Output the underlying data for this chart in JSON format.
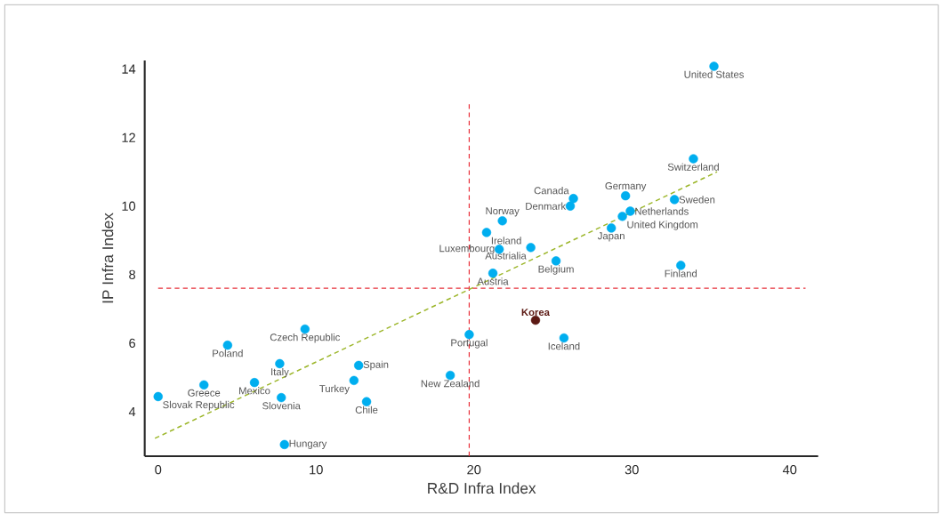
{
  "chart_data": {
    "type": "scatter",
    "xlabel": "R&D Infra Index",
    "ylabel": "IP Infra Index",
    "xlim": [
      -0.85,
      41.8
    ],
    "ylim": [
      2.7,
      14.25
    ],
    "xticks": [
      0,
      10,
      20,
      30,
      40
    ],
    "yticks": [
      4,
      6,
      8,
      10,
      12,
      14
    ],
    "grid": false,
    "series": [
      {
        "color": "#00aeef",
        "marker": "circle",
        "x": [
          35.2,
          33.9,
          32.7,
          26.3,
          26.1,
          29.6,
          29.9,
          29.4,
          28.7,
          33.1,
          21.8,
          20.8,
          21.6,
          23.6,
          25.2,
          21.2,
          25.7,
          19.7,
          18.5,
          0.0,
          4.4,
          9.3,
          2.9,
          6.1,
          7.7,
          7.8,
          8.0,
          12.7,
          12.4,
          13.2
        ],
        "values": [
          14.08,
          11.38,
          10.19,
          10.22,
          10.0,
          10.3,
          9.85,
          9.7,
          9.36,
          8.27,
          9.57,
          9.23,
          8.74,
          8.79,
          8.4,
          8.04,
          6.15,
          6.25,
          5.06,
          4.44,
          5.94,
          6.41,
          4.78,
          4.85,
          5.4,
          4.41,
          3.04,
          5.35,
          4.91,
          4.29
        ]
      },
      {
        "color": "#5c1a14",
        "marker": "circle",
        "x": [
          23.9
        ],
        "values": [
          6.67
        ]
      },
      {
        "type": "line",
        "color": "#9cb62a",
        "line_style": "dashed",
        "marker": "none",
        "x": [
          -0.2,
          35.4
        ],
        "values": [
          3.22,
          11.0
        ]
      }
    ],
    "ref_lines": [
      {
        "axis": "x",
        "value": 19.7,
        "color": "#e8303a",
        "line_style": "dashed"
      },
      {
        "axis": "y",
        "value": 7.6,
        "color": "#e8303a",
        "line_style": "dashed"
      }
    ],
    "annotations": [
      {
        "text": "United States",
        "x": 35.2,
        "y": 14.08
      },
      {
        "text": "Switzerland",
        "x": 33.9,
        "y": 11.38
      },
      {
        "text": "Sweden",
        "x": 32.7,
        "y": 10.19
      },
      {
        "text": "Canada",
        "x": 26.3,
        "y": 10.22
      },
      {
        "text": "Denmark",
        "x": 26.1,
        "y": 10.0
      },
      {
        "text": "Germany",
        "x": 29.6,
        "y": 10.3
      },
      {
        "text": "Netherlands",
        "x": 29.9,
        "y": 9.85
      },
      {
        "text": "United Kingdom",
        "x": 29.4,
        "y": 9.7
      },
      {
        "text": "Japan",
        "x": 28.7,
        "y": 9.36
      },
      {
        "text": "Finland",
        "x": 33.1,
        "y": 8.27
      },
      {
        "text": "Norway",
        "x": 21.8,
        "y": 9.57
      },
      {
        "text": "Ireland",
        "x": 20.8,
        "y": 9.23
      },
      {
        "text": "Luxembourg",
        "x": 21.6,
        "y": 8.74
      },
      {
        "text": "Austrialia",
        "x": 23.6,
        "y": 8.79
      },
      {
        "text": "Belgium",
        "x": 25.2,
        "y": 8.4
      },
      {
        "text": "Austria",
        "x": 21.2,
        "y": 8.04
      },
      {
        "text": "Iceland",
        "x": 25.7,
        "y": 6.15
      },
      {
        "text": "Portugal",
        "x": 19.7,
        "y": 6.25
      },
      {
        "text": "New Zealand",
        "x": 18.5,
        "y": 5.06
      },
      {
        "text": "Slovak Republic",
        "x": 0.0,
        "y": 4.44
      },
      {
        "text": "Poland",
        "x": 4.4,
        "y": 5.94
      },
      {
        "text": "Czech Republic",
        "x": 9.3,
        "y": 6.41
      },
      {
        "text": "Greece",
        "x": 2.9,
        "y": 4.78
      },
      {
        "text": "Mexico",
        "x": 6.1,
        "y": 4.85
      },
      {
        "text": "Italy",
        "x": 7.7,
        "y": 5.4
      },
      {
        "text": "Slovenia",
        "x": 7.8,
        "y": 4.41
      },
      {
        "text": "Hungary",
        "x": 8.0,
        "y": 3.04
      },
      {
        "text": "Spain",
        "x": 12.7,
        "y": 5.35
      },
      {
        "text": "Turkey",
        "x": 12.4,
        "y": 4.91
      },
      {
        "text": "Chile",
        "x": 13.2,
        "y": 4.29
      },
      {
        "text": "**Korea**",
        "x": 23.9,
        "y": 6.67
      }
    ]
  }
}
